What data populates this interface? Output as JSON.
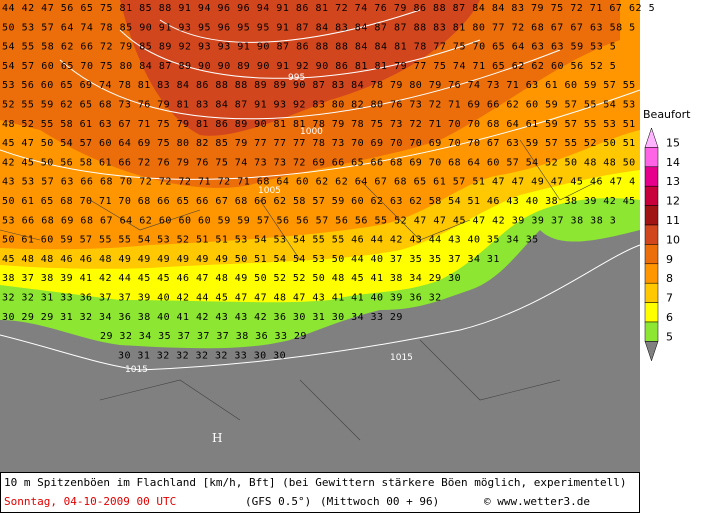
{
  "map": {
    "grid_rows": [
      "44 42 47 56 65 75 81 85 88 91 94 96 96 94 91 86 81 72 74 76 79 86 88 87 84 84 83 79 75 72 71 67 62 5",
      "50 53 57 64 74 78 85 90 91 93 95 96 95 95 91 87 84 83 84 87 87 88 83 81 80 77 72 68 67 67 63 58 5",
      "54 55 58 62 66 72 79 85 89 92 93 93 91 90 87 86 88 88 84 84 81 78 77 75 70 65 64 63 63 59 53 5",
      "54 57 60 65 70 75 80 84 87 89 90 90 89 90 91 92 90 86 81 81 79 77 75 74 71 65 62 62 60 56 52 5",
      "53 56 60 65 69 74 78 81 83 84 86 88 88 89 89 90 87 83 84 78 79 80 79 76 74 73 71 63 61 60 59 57 55",
      "52 55 59 62 65 68 73 76 79 81 83 84 87 91 93 92 83 80 82 80 76 73 72 71 69 66 62 60 59 57 55 54 53",
      "48 52 55 58 61 63 67 71 75 79 81 86 89 90 81 81 78 79 78 75 73 72 71 70 70 68 64 61 59 57 55 53 51",
      "45 47 50 54 57 60 64 69 75 80 82 85 79 77 77 77 78 73 70 69 70 70 69 70 70 67 63 59 57 55 52 50 51",
      "42 45 50 56 58 61 66 72 76 79 76 75 74 73 73 72 69 66 65 66 68 69 70 68 64 60 57 54 52 50 48 48 50",
      "43 53 57 63 66 68 70 72 72 72 71 72 71 68 64 60 62 62 64 67 68 65 61 57 51 47 47 49 47 45 46 47 4",
      "50 61 65 68 70 71 70 68 66 65 66 67 68 66 62 58 57 59 60 62 63 62 58 54 51 46 43 40 38 38 39 42 45",
      "53 66 68 69 68 67 64 62 60 60 60 59 59 57 56 56 57 56 56 55 52 47 47 45 47 42 39 39 37 38 38 3",
      "50 61 60 59 57 55 55 54 53 52 51 51 53 54 53 54 55 55 46 44 42 43 44 43 40 35 34 35",
      "45 48 48 46 46 48 49 49 49 49 49 49 50 51 54 54 53 50 44 40 37 35 35 37 34 31",
      "38 37 38 39 41 42 44 45 45 46 47 48 49 50 52 52 50 48 45 41 38 34 29 30",
      "32 32 31 33 36 37 37 39 40 42 44 45 47 47 48 47 43 41 41 40 39 36 32",
      "30 29 29 31 32 34 36 38 40 41 42 43 43 42 36 30 31 30 34 33 29",
      "29 32 34 35 37 37 37 38 36 33 29",
      "30 31 32 32 32 32 33 30 30"
    ],
    "isobar_labels": [
      "995",
      "1000",
      "1005",
      "1015",
      "1015"
    ],
    "high_marker": "H",
    "legend": {
      "title": "Beaufort",
      "levels": [
        "15",
        "14",
        "13",
        "12",
        "11",
        "10",
        "9",
        "8",
        "7",
        "6",
        "5"
      ],
      "colors": [
        "#ffb4ff",
        "#ff64e6",
        "#e6008c",
        "#c8003c",
        "#a01414",
        "#d2461e",
        "#eb6e0a",
        "#ff9600",
        "#ffc800",
        "#ffff00",
        "#8ce632"
      ]
    },
    "footer": {
      "description": "10 m Spitzenböen im Flachland [km/h, Bft] (bei Gewittern stärkere Böen möglich, experimentell)",
      "date": "Sonntag, 04-10-2009  00 UTC",
      "model": "(GFS 0.5°)",
      "run": "(Mittwoch 00 + 96)",
      "credit": "© www.wetter3.de"
    }
  }
}
